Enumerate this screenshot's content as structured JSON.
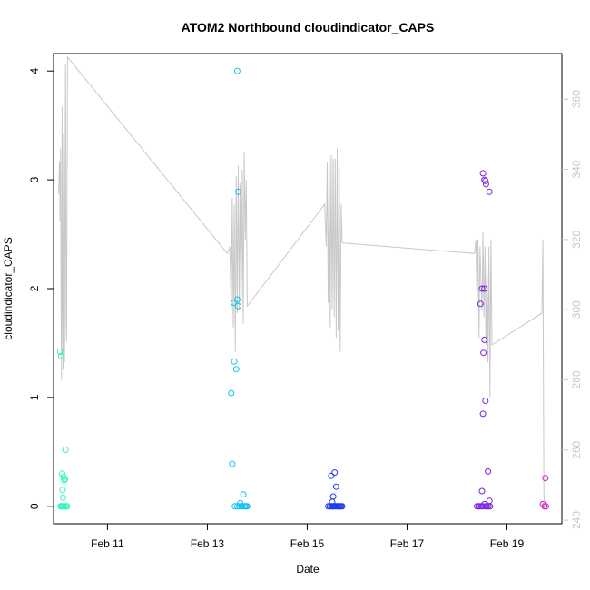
{
  "chart_data": {
    "type": "scatter",
    "title": "ATOM2 Northbound cloudindicator_CAPS",
    "xlabel": "Date",
    "ylabel": "cloudindicator_CAPS",
    "x_unit": "day of February",
    "xlim": [
      9.92,
      20.1
    ],
    "ylim": [
      -0.16,
      4.16
    ],
    "y2lim": [
      239,
      373
    ],
    "x_ticks": [
      {
        "value": 11,
        "label": "Feb 11"
      },
      {
        "value": 13,
        "label": "Feb 13"
      },
      {
        "value": 15,
        "label": "Feb 15"
      },
      {
        "value": 17,
        "label": "Feb 17"
      },
      {
        "value": 19,
        "label": "Feb 19"
      }
    ],
    "y_ticks": [
      0,
      1,
      2,
      3,
      4
    ],
    "y2_ticks": [
      240,
      260,
      280,
      300,
      320,
      340,
      360
    ],
    "colors": {
      "axis": "#000000",
      "secondary_axis": "#c8c8c8",
      "secondary_line": "#c8c8c8"
    },
    "series": [
      {
        "color": "#2ef5c0",
        "points": [
          [
            10.05,
            1.42
          ],
          [
            10.07,
            1.38
          ],
          [
            10.09,
            0.3
          ],
          [
            10.1,
            0.15
          ],
          [
            10.11,
            0.08
          ],
          [
            10.12,
            0.27
          ],
          [
            10.13,
            0.24
          ],
          [
            10.15,
            0.25
          ],
          [
            10.16,
            0.52
          ],
          [
            10.06,
            0.0
          ],
          [
            10.08,
            0.0
          ],
          [
            10.1,
            0.0
          ],
          [
            10.12,
            0.0
          ],
          [
            10.14,
            0.0
          ],
          [
            10.17,
            0.0
          ],
          [
            10.19,
            0.0
          ]
        ]
      },
      {
        "color": "#12c2f2",
        "points": [
          [
            13.6,
            4.0
          ],
          [
            13.62,
            2.89
          ],
          [
            13.48,
            1.04
          ],
          [
            13.53,
            1.87
          ],
          [
            13.6,
            1.9
          ],
          [
            13.62,
            1.84
          ],
          [
            13.54,
            1.33
          ],
          [
            13.58,
            1.26
          ],
          [
            13.5,
            0.39
          ],
          [
            13.72,
            0.11
          ],
          [
            13.66,
            0.03
          ],
          [
            13.55,
            0.0
          ],
          [
            13.6,
            0.0
          ],
          [
            13.64,
            0.0
          ],
          [
            13.68,
            0.0
          ],
          [
            13.7,
            0.0
          ],
          [
            13.74,
            0.0
          ],
          [
            13.76,
            0.0
          ],
          [
            13.78,
            0.0
          ],
          [
            13.8,
            0.0
          ]
        ]
      },
      {
        "color": "#1c3cf2",
        "points": [
          [
            15.55,
            0.31
          ],
          [
            15.48,
            0.28
          ],
          [
            15.58,
            0.18
          ],
          [
            15.52,
            0.09
          ],
          [
            15.5,
            0.04
          ],
          [
            15.42,
            0.0
          ],
          [
            15.45,
            0.0
          ],
          [
            15.48,
            0.0
          ],
          [
            15.5,
            0.0
          ],
          [
            15.52,
            0.0
          ],
          [
            15.54,
            0.0
          ],
          [
            15.56,
            0.0
          ],
          [
            15.58,
            0.0
          ],
          [
            15.6,
            0.0
          ],
          [
            15.62,
            0.0
          ],
          [
            15.64,
            0.0
          ],
          [
            15.66,
            0.0
          ],
          [
            15.68,
            0.0
          ],
          [
            15.7,
            0.0
          ]
        ]
      },
      {
        "color": "#7a22e0",
        "points": [
          [
            18.52,
            3.06
          ],
          [
            18.55,
            3.0
          ],
          [
            18.57,
            2.99
          ],
          [
            18.58,
            2.96
          ],
          [
            18.65,
            2.89
          ],
          [
            18.5,
            2.0
          ],
          [
            18.55,
            2.0
          ],
          [
            18.47,
            1.86
          ],
          [
            18.55,
            1.53
          ],
          [
            18.53,
            1.41
          ],
          [
            18.57,
            0.97
          ],
          [
            18.52,
            0.85
          ],
          [
            18.62,
            0.32
          ],
          [
            18.5,
            0.14
          ],
          [
            18.65,
            0.05
          ],
          [
            18.55,
            0.02
          ],
          [
            18.4,
            0.0
          ],
          [
            18.43,
            0.0
          ],
          [
            18.46,
            0.0
          ],
          [
            18.49,
            0.0
          ],
          [
            18.52,
            0.0
          ],
          [
            18.58,
            0.0
          ],
          [
            18.6,
            0.0
          ],
          [
            18.63,
            0.0
          ],
          [
            18.66,
            0.0
          ]
        ]
      },
      {
        "color": "#d619d6",
        "points": [
          [
            19.77,
            0.26
          ],
          [
            19.72,
            0.02
          ],
          [
            19.75,
            0.0
          ],
          [
            19.78,
            0.0
          ]
        ]
      }
    ],
    "secondary_series": {
      "color": "#c8c8c8",
      "points": [
        [
          10.02,
          333
        ],
        [
          10.04,
          342
        ],
        [
          10.05,
          325
        ],
        [
          10.06,
          346
        ],
        [
          10.07,
          300
        ],
        [
          10.08,
          280
        ],
        [
          10.09,
          358
        ],
        [
          10.1,
          300
        ],
        [
          10.11,
          283
        ],
        [
          10.12,
          350
        ],
        [
          10.13,
          290
        ],
        [
          10.14,
          285
        ],
        [
          10.15,
          340
        ],
        [
          10.16,
          370
        ],
        [
          10.17,
          296
        ],
        [
          10.18,
          291
        ],
        [
          10.2,
          372
        ],
        [
          13.4,
          316
        ],
        [
          13.45,
          318
        ],
        [
          13.48,
          300
        ],
        [
          13.5,
          332
        ],
        [
          13.52,
          295
        ],
        [
          13.54,
          330
        ],
        [
          13.56,
          288
        ],
        [
          13.58,
          338
        ],
        [
          13.6,
          299
        ],
        [
          13.62,
          341
        ],
        [
          13.64,
          300
        ],
        [
          13.66,
          336
        ],
        [
          13.68,
          302
        ],
        [
          13.7,
          340
        ],
        [
          13.72,
          296
        ],
        [
          13.74,
          345
        ],
        [
          13.76,
          320
        ],
        [
          13.78,
          337
        ],
        [
          13.8,
          301
        ],
        [
          15.35,
          330
        ],
        [
          15.38,
          318
        ],
        [
          15.4,
          342
        ],
        [
          15.42,
          302
        ],
        [
          15.44,
          343
        ],
        [
          15.46,
          295
        ],
        [
          15.48,
          344
        ],
        [
          15.5,
          300
        ],
        [
          15.52,
          343
        ],
        [
          15.54,
          298
        ],
        [
          15.56,
          343
        ],
        [
          15.58,
          292
        ],
        [
          15.6,
          346
        ],
        [
          15.62,
          294
        ],
        [
          15.64,
          340
        ],
        [
          15.66,
          288
        ],
        [
          15.68,
          330
        ],
        [
          15.7,
          319
        ],
        [
          18.35,
          316
        ],
        [
          18.38,
          320
        ],
        [
          18.4,
          303
        ],
        [
          18.42,
          320
        ],
        [
          18.44,
          292
        ],
        [
          18.46,
          318
        ],
        [
          18.48,
          308
        ],
        [
          18.5,
          300
        ],
        [
          18.52,
          322
        ],
        [
          18.54,
          298
        ],
        [
          18.56,
          318
        ],
        [
          18.58,
          290
        ],
        [
          18.6,
          314
        ],
        [
          18.62,
          285
        ],
        [
          18.64,
          318
        ],
        [
          18.66,
          275
        ],
        [
          18.68,
          320
        ],
        [
          18.7,
          290
        ],
        [
          19.7,
          299
        ],
        [
          19.72,
          320
        ],
        [
          19.74,
          247
        ],
        [
          19.76,
          245
        ]
      ]
    }
  }
}
